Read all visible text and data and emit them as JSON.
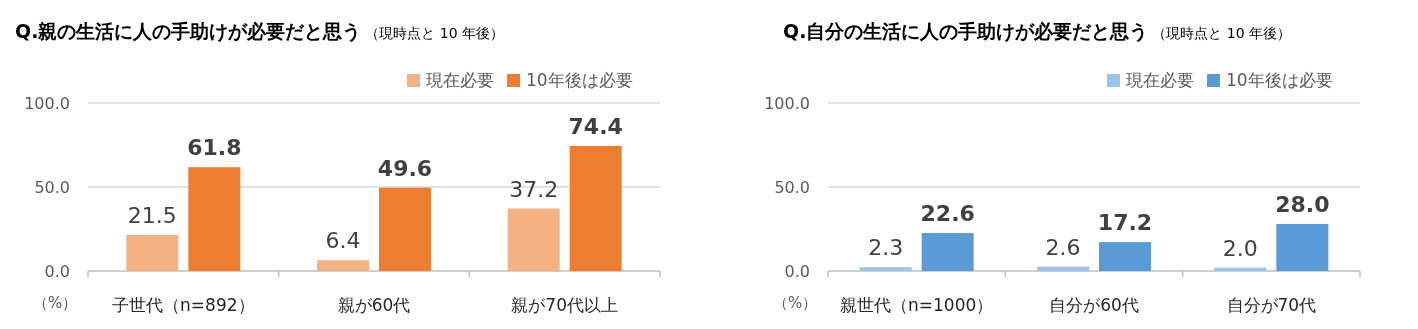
{
  "chart_data": [
    {
      "type": "bar",
      "title": "Q.親の生活に人の手助けが必要だと思う",
      "subtitle": "（現時点と 10 年後）",
      "ylabel": "（%）",
      "categories": [
        "子世代（n=892）",
        "親が60代",
        "親が70代以上"
      ],
      "series": [
        {
          "name": "現在必要",
          "color": "#f4b183",
          "values": [
            21.5,
            6.4,
            37.2
          ],
          "value_labels": [
            "21.5",
            "6.4",
            "37.2"
          ]
        },
        {
          "name": "10年後は必要",
          "color": "#ed7d31",
          "values": [
            61.8,
            49.6,
            74.4
          ],
          "value_labels": [
            "61.8",
            "49.6",
            "74.4"
          ]
        }
      ],
      "ylim": [
        0,
        100
      ],
      "yticks": [
        {
          "value": 0,
          "label": "0.0"
        },
        {
          "value": 50,
          "label": "50.0"
        },
        {
          "value": 100,
          "label": "100.0"
        }
      ],
      "grid": "y",
      "legend": "top right"
    },
    {
      "type": "bar",
      "title": "Q.自分の生活に人の手助けが必要だと思う",
      "subtitle": "（現時点と 10 年後）",
      "ylabel": "（%）",
      "categories": [
        "親世代（n=1000）",
        "自分が60代",
        "自分が70代"
      ],
      "series": [
        {
          "name": "現在必要",
          "color": "#9dc3e6",
          "values": [
            2.3,
            2.6,
            2.0
          ],
          "value_labels": [
            "2.3",
            "2.6",
            "2.0"
          ]
        },
        {
          "name": "10年後は必要",
          "color": "#5b9bd5",
          "values": [
            22.6,
            17.2,
            28.0
          ],
          "value_labels": [
            "22.6",
            "17.2",
            "28.0"
          ]
        }
      ],
      "ylim": [
        0,
        100
      ],
      "yticks": [
        {
          "value": 0,
          "label": "0.0"
        },
        {
          "value": 50,
          "label": "50.0"
        },
        {
          "value": 100,
          "label": "100.0"
        }
      ],
      "grid": "y",
      "legend": "top right"
    }
  ]
}
